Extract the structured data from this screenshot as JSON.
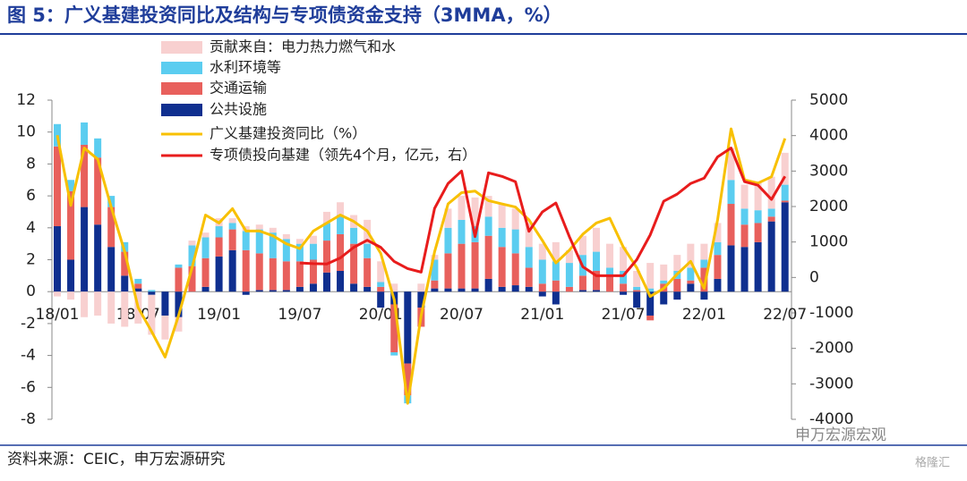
{
  "chart_data": {
    "type": "bar",
    "stacked": true,
    "title": "图 5：广义基建投资同比及结构与专项债资金支持（3MMA，%）",
    "source": "资料来源：CEIC，申万宏源研究",
    "watermark": [
      "申万宏源宏观",
      "格隆汇"
    ],
    "categories": [
      "18/01",
      null,
      null,
      null,
      null,
      null,
      "18/07",
      null,
      null,
      null,
      null,
      null,
      "19/01",
      null,
      null,
      null,
      null,
      null,
      "19/07",
      null,
      null,
      null,
      null,
      null,
      "20/01",
      null,
      null,
      null,
      null,
      null,
      "20/07",
      null,
      null,
      null,
      null,
      null,
      "21/01",
      null,
      null,
      null,
      null,
      null,
      "21/07",
      null,
      null,
      null,
      null,
      null,
      "22/01",
      null,
      null,
      null,
      null,
      null,
      "22/07"
    ],
    "ylim": [
      -8,
      12
    ],
    "yticks": [
      -8,
      -6,
      -4,
      -2,
      0,
      2,
      4,
      6,
      8,
      10,
      12
    ],
    "y2lim": [
      -4000,
      5000
    ],
    "y2ticks": [
      -4000,
      -3000,
      -2000,
      -1000,
      0,
      1000,
      2000,
      3000,
      4000,
      5000
    ],
    "legend": "top-left",
    "series": [
      {
        "name": "贡献来自：电力热力燃气和水",
        "type": "bar",
        "color": "#f8d0d0",
        "values": [
          -0.3,
          -0.5,
          -1.6,
          -1.5,
          -2.0,
          -2.2,
          -2.0,
          -2.5,
          -1.5,
          -0.9,
          0.3,
          0.3,
          0.5,
          0.3,
          0.3,
          0.3,
          0.3,
          0.3,
          0.3,
          0.5,
          0.7,
          0.8,
          0.8,
          1.5,
          1.3,
          0.5,
          0,
          0.5,
          0.3,
          1.2,
          1.5,
          1.8,
          1.3,
          1.5,
          1.3,
          1.5,
          1.0,
          1.2,
          0.8,
          1.2,
          1.5,
          1.5,
          1.5,
          1.0,
          1.6,
          1.0,
          1.0,
          1.5,
          1.0,
          1.2,
          2.0,
          1.5,
          1.8,
          2.0,
          2.0
        ]
      },
      {
        "name": "水利环境等",
        "type": "bar",
        "color": "#5bcdf0",
        "values": [
          1.4,
          0.7,
          1.4,
          1.2,
          0.7,
          0.6,
          0.3,
          0.1,
          0,
          0.2,
          1.3,
          1.3,
          0.7,
          0.4,
          1.2,
          1.5,
          1.6,
          1.4,
          1.1,
          1.0,
          1.1,
          1.2,
          1.0,
          0.9,
          0.3,
          -0.2,
          -0.5,
          0,
          1.3,
          1.6,
          1.5,
          1.0,
          1.2,
          1.2,
          1.5,
          1.3,
          1.5,
          1.2,
          1.5,
          1.3,
          1.2,
          0.5,
          0.8,
          0.2,
          0.2,
          0.2,
          0.5,
          0.8,
          0.5,
          0.8,
          1.5,
          1.0,
          0.8,
          0.5,
          1.0
        ]
      },
      {
        "name": "交通运输",
        "type": "bar",
        "color": "#e8605c",
        "values": [
          5.0,
          4.3,
          3.9,
          4.2,
          2.5,
          1.5,
          0.3,
          0,
          0,
          1.5,
          1.6,
          1.8,
          1.2,
          1.3,
          2.6,
          2.3,
          2.0,
          1.8,
          1.6,
          1.5,
          2.0,
          2.3,
          2.5,
          1.8,
          0.3,
          -3.0,
          -2.0,
          -1.2,
          0.5,
          2.2,
          2.8,
          2.9,
          2.7,
          2.5,
          2.0,
          1.2,
          0.5,
          0.7,
          0.3,
          0.9,
          1.2,
          1.0,
          0.5,
          0.1,
          -0.3,
          0.5,
          0.8,
          0.2,
          1.5,
          1.5,
          2.6,
          1.4,
          1.2,
          0.3,
          0.1
        ]
      },
      {
        "name": "公共设施",
        "type": "bar",
        "color": "#0f2f8f",
        "values": [
          4.1,
          2.0,
          5.3,
          4.2,
          2.8,
          1.0,
          0.2,
          -0.2,
          -1.5,
          -1.6,
          0.0,
          0.3,
          2.2,
          2.6,
          -0.2,
          0.1,
          0.1,
          0.1,
          0.3,
          0.5,
          1.2,
          1.3,
          0.5,
          0.3,
          -1.0,
          -0.8,
          -4.5,
          -1.0,
          0.2,
          0.2,
          0.2,
          0.2,
          0.8,
          0.3,
          0.4,
          0.3,
          -0.3,
          -0.8,
          0.0,
          0.1,
          0.1,
          0,
          -0.2,
          -1.0,
          -1.5,
          -0.8,
          -0.5,
          0.5,
          -0.5,
          0.8,
          2.9,
          2.8,
          3.1,
          4.4,
          5.6
        ]
      },
      {
        "name": "广义基建投资同比（%）",
        "type": "line",
        "color": "#f8c000",
        "values": [
          9.8,
          5.4,
          9.0,
          8.3,
          5.3,
          2.5,
          -1.0,
          -2.5,
          -4.1,
          -1.5,
          1.5,
          4.8,
          4.3,
          5.2,
          3.8,
          3.8,
          3.5,
          3.0,
          2.7,
          3.8,
          4.3,
          4.8,
          4.4,
          3.8,
          2.4,
          -0.5,
          -7.0,
          -1.5,
          2.5,
          5.5,
          6.2,
          6.3,
          5.7,
          5.5,
          5.3,
          4.5,
          3.2,
          1.8,
          2.6,
          3.6,
          4.3,
          4.6,
          2.8,
          1.5,
          -0.3,
          0.2,
          1.1,
          1.9,
          0.2,
          4.5,
          10.2,
          7.0,
          6.8,
          7.2,
          9.6
        ]
      },
      {
        "name": "专项债投向基建（领先4个月，亿元，右）",
        "type": "line",
        "axis": "y2",
        "color": "#e81c1c",
        "values": [
          null,
          null,
          null,
          null,
          null,
          null,
          null,
          null,
          null,
          null,
          null,
          null,
          null,
          null,
          null,
          null,
          null,
          null,
          410,
          390,
          380,
          550,
          850,
          1050,
          850,
          450,
          250,
          150,
          1950,
          2650,
          3000,
          1150,
          2950,
          2850,
          2700,
          1300,
          1850,
          2100,
          1150,
          300,
          50,
          50,
          50,
          500,
          1200,
          2150,
          2350,
          2650,
          2800,
          3400,
          3650,
          2700,
          2600,
          2200,
          2850
        ]
      }
    ]
  }
}
